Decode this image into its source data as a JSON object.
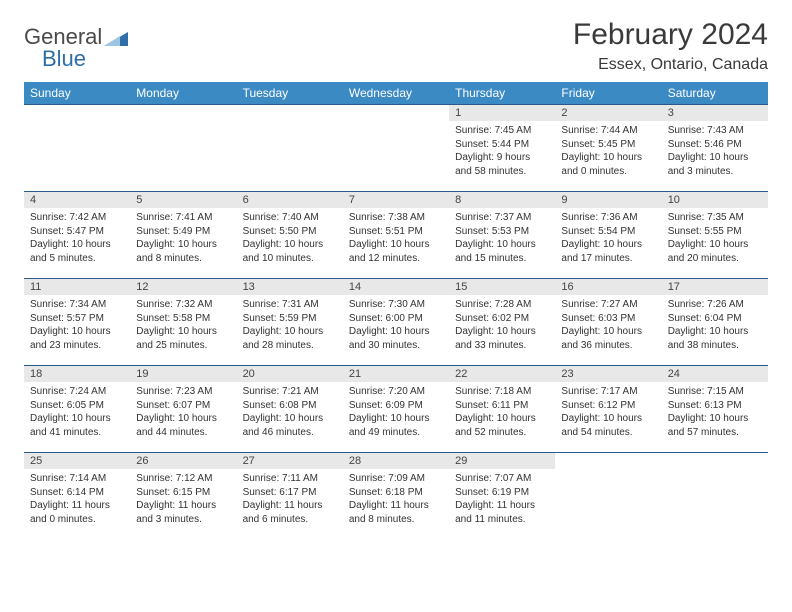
{
  "logo": {
    "general": "General",
    "blue": "Blue"
  },
  "title": "February 2024",
  "location": "Essex, Ontario, Canada",
  "colors": {
    "header_bg": "#3b8ac4",
    "header_text": "#ffffff",
    "row_border": "#2a5a8a",
    "daybar_bg": "#e8e8e8",
    "text": "#333333",
    "logo_gray": "#4a4a4a",
    "logo_blue": "#2f6fa8"
  },
  "weekdays": [
    "Sunday",
    "Monday",
    "Tuesday",
    "Wednesday",
    "Thursday",
    "Friday",
    "Saturday"
  ],
  "weeks": [
    [
      {
        "n": "",
        "sr": "",
        "ss": "",
        "dl": "",
        "empty": true
      },
      {
        "n": "",
        "sr": "",
        "ss": "",
        "dl": "",
        "empty": true
      },
      {
        "n": "",
        "sr": "",
        "ss": "",
        "dl": "",
        "empty": true
      },
      {
        "n": "",
        "sr": "",
        "ss": "",
        "dl": "",
        "empty": true
      },
      {
        "n": "1",
        "sr": "Sunrise: 7:45 AM",
        "ss": "Sunset: 5:44 PM",
        "dl": "Daylight: 9 hours and 58 minutes."
      },
      {
        "n": "2",
        "sr": "Sunrise: 7:44 AM",
        "ss": "Sunset: 5:45 PM",
        "dl": "Daylight: 10 hours and 0 minutes."
      },
      {
        "n": "3",
        "sr": "Sunrise: 7:43 AM",
        "ss": "Sunset: 5:46 PM",
        "dl": "Daylight: 10 hours and 3 minutes."
      }
    ],
    [
      {
        "n": "4",
        "sr": "Sunrise: 7:42 AM",
        "ss": "Sunset: 5:47 PM",
        "dl": "Daylight: 10 hours and 5 minutes."
      },
      {
        "n": "5",
        "sr": "Sunrise: 7:41 AM",
        "ss": "Sunset: 5:49 PM",
        "dl": "Daylight: 10 hours and 8 minutes."
      },
      {
        "n": "6",
        "sr": "Sunrise: 7:40 AM",
        "ss": "Sunset: 5:50 PM",
        "dl": "Daylight: 10 hours and 10 minutes."
      },
      {
        "n": "7",
        "sr": "Sunrise: 7:38 AM",
        "ss": "Sunset: 5:51 PM",
        "dl": "Daylight: 10 hours and 12 minutes."
      },
      {
        "n": "8",
        "sr": "Sunrise: 7:37 AM",
        "ss": "Sunset: 5:53 PM",
        "dl": "Daylight: 10 hours and 15 minutes."
      },
      {
        "n": "9",
        "sr": "Sunrise: 7:36 AM",
        "ss": "Sunset: 5:54 PM",
        "dl": "Daylight: 10 hours and 17 minutes."
      },
      {
        "n": "10",
        "sr": "Sunrise: 7:35 AM",
        "ss": "Sunset: 5:55 PM",
        "dl": "Daylight: 10 hours and 20 minutes."
      }
    ],
    [
      {
        "n": "11",
        "sr": "Sunrise: 7:34 AM",
        "ss": "Sunset: 5:57 PM",
        "dl": "Daylight: 10 hours and 23 minutes."
      },
      {
        "n": "12",
        "sr": "Sunrise: 7:32 AM",
        "ss": "Sunset: 5:58 PM",
        "dl": "Daylight: 10 hours and 25 minutes."
      },
      {
        "n": "13",
        "sr": "Sunrise: 7:31 AM",
        "ss": "Sunset: 5:59 PM",
        "dl": "Daylight: 10 hours and 28 minutes."
      },
      {
        "n": "14",
        "sr": "Sunrise: 7:30 AM",
        "ss": "Sunset: 6:00 PM",
        "dl": "Daylight: 10 hours and 30 minutes."
      },
      {
        "n": "15",
        "sr": "Sunrise: 7:28 AM",
        "ss": "Sunset: 6:02 PM",
        "dl": "Daylight: 10 hours and 33 minutes."
      },
      {
        "n": "16",
        "sr": "Sunrise: 7:27 AM",
        "ss": "Sunset: 6:03 PM",
        "dl": "Daylight: 10 hours and 36 minutes."
      },
      {
        "n": "17",
        "sr": "Sunrise: 7:26 AM",
        "ss": "Sunset: 6:04 PM",
        "dl": "Daylight: 10 hours and 38 minutes."
      }
    ],
    [
      {
        "n": "18",
        "sr": "Sunrise: 7:24 AM",
        "ss": "Sunset: 6:05 PM",
        "dl": "Daylight: 10 hours and 41 minutes."
      },
      {
        "n": "19",
        "sr": "Sunrise: 7:23 AM",
        "ss": "Sunset: 6:07 PM",
        "dl": "Daylight: 10 hours and 44 minutes."
      },
      {
        "n": "20",
        "sr": "Sunrise: 7:21 AM",
        "ss": "Sunset: 6:08 PM",
        "dl": "Daylight: 10 hours and 46 minutes."
      },
      {
        "n": "21",
        "sr": "Sunrise: 7:20 AM",
        "ss": "Sunset: 6:09 PM",
        "dl": "Daylight: 10 hours and 49 minutes."
      },
      {
        "n": "22",
        "sr": "Sunrise: 7:18 AM",
        "ss": "Sunset: 6:11 PM",
        "dl": "Daylight: 10 hours and 52 minutes."
      },
      {
        "n": "23",
        "sr": "Sunrise: 7:17 AM",
        "ss": "Sunset: 6:12 PM",
        "dl": "Daylight: 10 hours and 54 minutes."
      },
      {
        "n": "24",
        "sr": "Sunrise: 7:15 AM",
        "ss": "Sunset: 6:13 PM",
        "dl": "Daylight: 10 hours and 57 minutes."
      }
    ],
    [
      {
        "n": "25",
        "sr": "Sunrise: 7:14 AM",
        "ss": "Sunset: 6:14 PM",
        "dl": "Daylight: 11 hours and 0 minutes."
      },
      {
        "n": "26",
        "sr": "Sunrise: 7:12 AM",
        "ss": "Sunset: 6:15 PM",
        "dl": "Daylight: 11 hours and 3 minutes."
      },
      {
        "n": "27",
        "sr": "Sunrise: 7:11 AM",
        "ss": "Sunset: 6:17 PM",
        "dl": "Daylight: 11 hours and 6 minutes."
      },
      {
        "n": "28",
        "sr": "Sunrise: 7:09 AM",
        "ss": "Sunset: 6:18 PM",
        "dl": "Daylight: 11 hours and 8 minutes."
      },
      {
        "n": "29",
        "sr": "Sunrise: 7:07 AM",
        "ss": "Sunset: 6:19 PM",
        "dl": "Daylight: 11 hours and 11 minutes."
      },
      {
        "n": "",
        "sr": "",
        "ss": "",
        "dl": "",
        "empty": true
      },
      {
        "n": "",
        "sr": "",
        "ss": "",
        "dl": "",
        "empty": true
      }
    ]
  ]
}
